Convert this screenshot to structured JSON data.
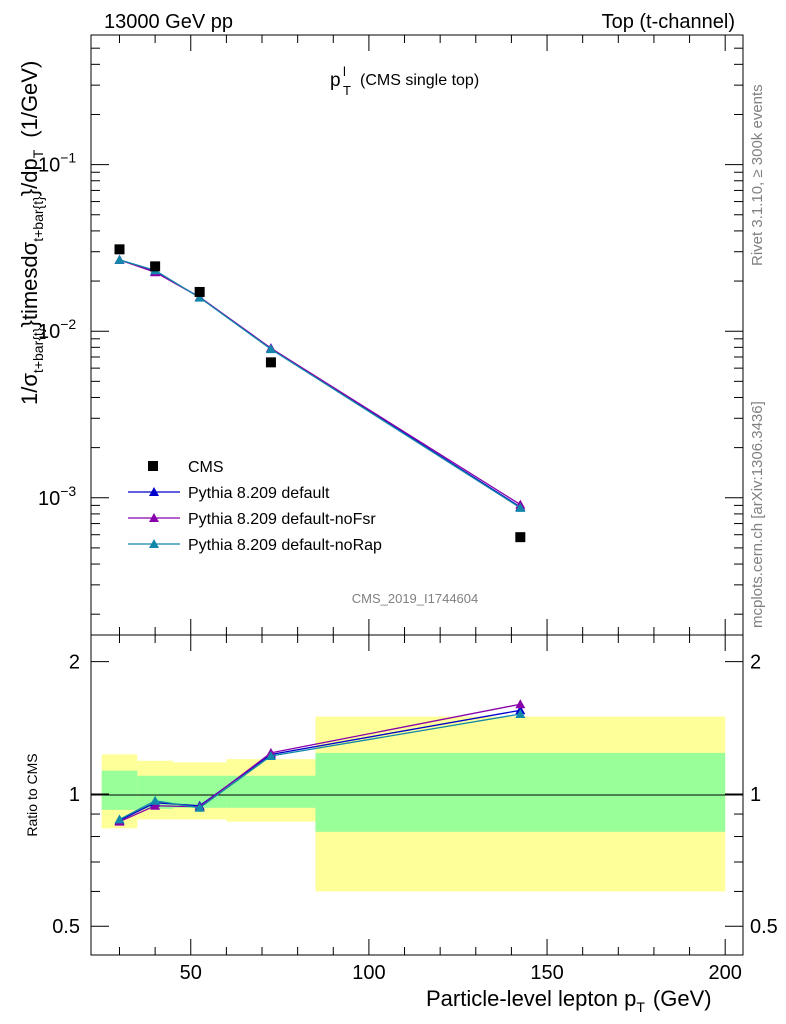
{
  "header": {
    "energy_label": "13000 GeV pp",
    "process_label": "Top (t-channel)"
  },
  "side": {
    "rivet_label": "Rivet 3.1.10, ≥ 300k events",
    "source_label": "mcplots.cern.ch [arXiv:1306.3436]"
  },
  "chart_data": [
    {
      "type": "line",
      "title_main": "p",
      "title_sup": "l",
      "title_sub": "T",
      "title_rest": "(CMS single top)",
      "watermark": "CMS_2019_I1744604",
      "ylabel": "1/σ_{t+bar{t}}timesdσ_{t+bar{t}}/dp_T (1/GeV)",
      "ylabel_parts": {
        "a": "1/σ",
        "b": "t+bar{t}",
        "c": "}timesdσ",
        "d": "t+bar{t}",
        "e": "}/dp",
        "f": "T",
        "g": "(1/GeV)"
      },
      "yscale": "log",
      "ylim": [
        0.00015,
        0.6
      ],
      "xlim": [
        22,
        205
      ],
      "y_ticks": [
        {
          "value": 0.1,
          "base": "10",
          "exp": "−1"
        },
        {
          "value": 0.01,
          "base": "10",
          "exp": "−2"
        },
        {
          "value": 0.001,
          "base": "10",
          "exp": "−3"
        }
      ],
      "legend_position": "lower-left",
      "data_series": {
        "name": "CMS",
        "x": [
          30,
          40,
          52.5,
          72.5,
          142.5
        ],
        "y": [
          0.031,
          0.0245,
          0.0172,
          0.0065,
          0.00058
        ],
        "color": "#000000"
      },
      "series": [
        {
          "name": "Pythia 8.209 default",
          "color": "#0000CC",
          "x": [
            30,
            40,
            52.5,
            72.5,
            142.5
          ],
          "y": [
            0.0268,
            0.0228,
            0.016,
            0.0079,
            0.00088
          ]
        },
        {
          "name": "Pythia 8.209 default-noFsr",
          "color": "#8800AA",
          "x": [
            30,
            40,
            52.5,
            72.5,
            142.5
          ],
          "y": [
            0.0268,
            0.0226,
            0.016,
            0.0079,
            0.00091
          ]
        },
        {
          "name": "Pythia 8.209 default-noRap",
          "color": "#1188AA",
          "x": [
            30,
            40,
            52.5,
            72.5,
            142.5
          ],
          "y": [
            0.0268,
            0.0232,
            0.0159,
            0.0078,
            0.00087
          ]
        }
      ]
    },
    {
      "type": "line",
      "ylabel": "Ratio to CMS",
      "xlabel_main": "Particle-level lepton p",
      "xlabel_sub": "T",
      "xlabel_unit": "(GeV)",
      "yscale": "log",
      "ylim": [
        0.43,
        2.3
      ],
      "xlim": [
        22,
        205
      ],
      "y_tick_labels": [
        {
          "value": 2,
          "label": "2"
        },
        {
          "value": 1,
          "label": "1"
        },
        {
          "value": 0.5,
          "label": "0.5"
        }
      ],
      "x_tick_labels": [
        {
          "value": 50,
          "label": "50"
        },
        {
          "value": 100,
          "label": "100"
        },
        {
          "value": 150,
          "label": "150"
        },
        {
          "value": 200,
          "label": "200"
        }
      ],
      "uncertainty_bands": [
        {
          "x0": 25,
          "x1": 35,
          "yellow": [
            0.835,
            1.23
          ],
          "green": [
            0.92,
            1.13
          ]
        },
        {
          "x0": 35,
          "x1": 45,
          "yellow": [
            0.875,
            1.19
          ],
          "green": [
            0.925,
            1.1
          ]
        },
        {
          "x0": 45,
          "x1": 60,
          "yellow": [
            0.875,
            1.18
          ],
          "green": [
            0.93,
            1.1
          ]
        },
        {
          "x0": 60,
          "x1": 85,
          "yellow": [
            0.865,
            1.2
          ],
          "green": [
            0.93,
            1.1
          ]
        },
        {
          "x0": 85,
          "x1": 200,
          "yellow": [
            0.6,
            1.5
          ],
          "green": [
            0.82,
            1.24
          ]
        }
      ],
      "series": [
        {
          "name": "Pythia 8.209 default",
          "color": "#0000CC",
          "x": [
            30,
            40,
            52.5,
            72.5,
            142.5
          ],
          "y": [
            0.87,
            0.955,
            0.94,
            1.23,
            1.55
          ]
        },
        {
          "name": "Pythia 8.209 default-noFsr",
          "color": "#8800AA",
          "x": [
            30,
            40,
            52.5,
            72.5,
            142.5
          ],
          "y": [
            0.865,
            0.94,
            0.935,
            1.24,
            1.6
          ]
        },
        {
          "name": "Pythia 8.209 default-noRap",
          "color": "#1188AA",
          "x": [
            30,
            40,
            52.5,
            72.5,
            142.5
          ],
          "y": [
            0.875,
            0.965,
            0.93,
            1.22,
            1.52
          ]
        }
      ]
    }
  ]
}
